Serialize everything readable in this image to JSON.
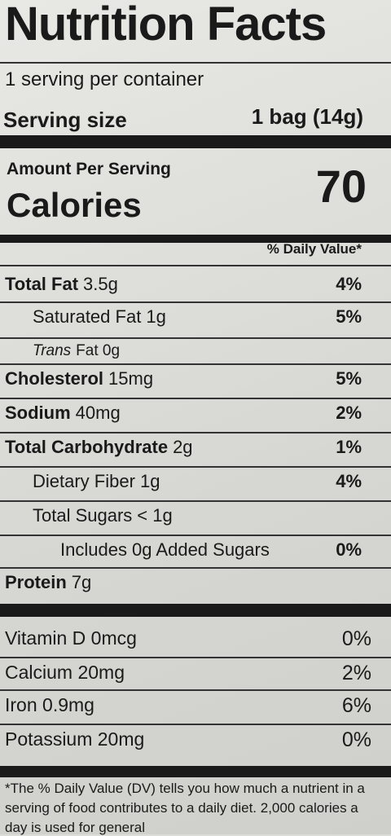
{
  "title": "Nutrition Facts",
  "servings": "1 serving per container",
  "serving_size": {
    "label": "Serving size",
    "value": "1 bag (14g)"
  },
  "amount_per_serving": "Amount Per Serving",
  "calories": {
    "label": "Calories",
    "value": "70"
  },
  "daily_value_header": "% Daily Value*",
  "nutrients": [
    {
      "name": "Total Fat",
      "amount": "3.5g",
      "dv": "4%",
      "bold": true,
      "indent": 0
    },
    {
      "name": "Saturated Fat 1g",
      "dv": "5%",
      "indent": 1
    },
    {
      "name": "Trans",
      "amount": "Fat 0g",
      "italic": true,
      "indent": 1
    },
    {
      "name": "Cholesterol",
      "amount": "15mg",
      "dv": "5%",
      "bold": true,
      "indent": 0
    },
    {
      "name": "Sodium",
      "amount": "40mg",
      "dv": "2%",
      "bold": true,
      "indent": 0
    },
    {
      "name": "Total Carbohydrate",
      "amount": "2g",
      "dv": "1%",
      "bold": true,
      "indent": 0
    },
    {
      "name": "Dietary Fiber 1g",
      "dv": "4%",
      "indent": 1
    },
    {
      "name": "Total Sugars",
      "amount": "< 1g",
      "indent": 1
    },
    {
      "name": "Includes 0g Added Sugars",
      "dv": "0%",
      "indent": 2
    },
    {
      "name": "Protein",
      "amount": "7g",
      "bold": true,
      "indent": 0
    }
  ],
  "vitamins": [
    {
      "name": "Vitamin D 0mcg",
      "dv": "0%"
    },
    {
      "name": "Calcium 20mg",
      "dv": "2%"
    },
    {
      "name": "Iron 0.9mg",
      "dv": "6%"
    },
    {
      "name": "Potassium 20mg",
      "dv": "0%"
    }
  ],
  "footnote": [
    "*The % Daily Value (DV) tells you how much a nutrient in a",
    "serving of food contributes to a daily diet. 2,000 calories a",
    "day is used for general"
  ]
}
